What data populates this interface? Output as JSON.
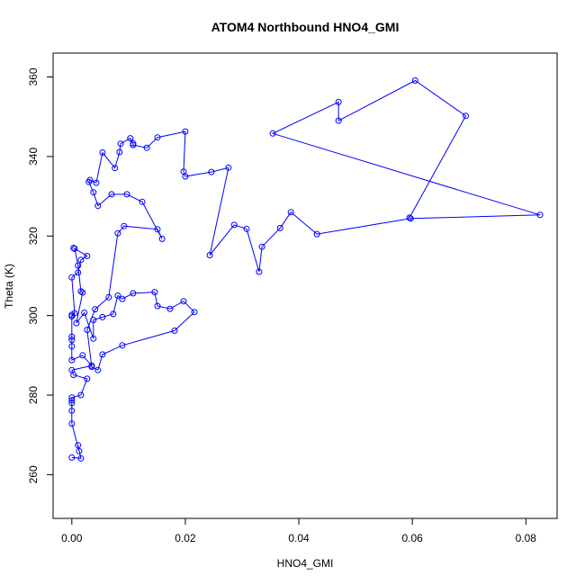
{
  "chart_data": {
    "type": "line",
    "title": "ATOM4 Northbound HNO4_GMI",
    "xlabel": "HNO4_GMI",
    "ylabel": "Theta (K)",
    "xlim": [
      -0.0033,
      0.0855
    ],
    "ylim": [
      249,
      366
    ],
    "x_ticks": [
      "0.00",
      "0.02",
      "0.04",
      "0.06",
      "0.08"
    ],
    "y_ticks": [
      "260",
      "280",
      "300",
      "320",
      "340",
      "360"
    ],
    "grid": false,
    "series": [
      {
        "color": "#0000ff",
        "marker": "open-circle",
        "points": [
          [
            0.0,
            264.3
          ],
          [
            0.0016,
            264.1
          ],
          [
            0.0011,
            267.4
          ],
          [
            0.0013,
            265.9
          ],
          [
            0.0,
            272.8
          ],
          [
            0.0,
            276.1
          ],
          [
            0.0,
            278.0
          ],
          [
            0.0,
            278.7
          ],
          [
            0.0,
            279.4
          ],
          [
            0.0016,
            280.0
          ],
          [
            0.0027,
            284.1
          ],
          [
            0.0003,
            285.1
          ],
          [
            0.0,
            286.3
          ],
          [
            0.0035,
            287.4
          ],
          [
            0.0019,
            290.0
          ],
          [
            0.0,
            288.8
          ],
          [
            0.0,
            292.3
          ],
          [
            0.0,
            293.9
          ],
          [
            0.0,
            294.7
          ],
          [
            0.0,
            300.2
          ],
          [
            0.0,
            299.8
          ],
          [
            0.0005,
            300.6
          ],
          [
            0.0,
            309.6
          ],
          [
            0.0011,
            310.8
          ],
          [
            0.0016,
            314.0
          ],
          [
            0.0027,
            315.0
          ],
          [
            0.0003,
            317.0
          ],
          [
            0.0005,
            316.8
          ],
          [
            0.0011,
            312.6
          ],
          [
            0.0016,
            306.1
          ],
          [
            0.0019,
            305.8
          ],
          [
            0.0008,
            298.1
          ],
          [
            0.0022,
            300.7
          ],
          [
            0.0038,
            294.2
          ],
          [
            0.0038,
            298.9
          ],
          [
            0.0054,
            299.6
          ],
          [
            0.0073,
            300.4
          ],
          [
            0.0081,
            305.0
          ],
          [
            0.0089,
            304.2
          ],
          [
            0.0108,
            305.6
          ],
          [
            0.0146,
            305.9
          ],
          [
            0.0151,
            302.4
          ],
          [
            0.0173,
            301.7
          ],
          [
            0.0197,
            303.6
          ],
          [
            0.0216,
            300.9
          ],
          [
            0.0181,
            296.2
          ],
          [
            0.0089,
            292.5
          ],
          [
            0.0054,
            290.2
          ],
          [
            0.0046,
            286.3
          ],
          [
            0.0035,
            287.1
          ],
          [
            0.0027,
            296.4
          ],
          [
            0.0041,
            301.6
          ],
          [
            0.0065,
            304.6
          ],
          [
            0.0081,
            320.7
          ],
          [
            0.0092,
            322.5
          ],
          [
            0.0151,
            321.7
          ],
          [
            0.0159,
            319.3
          ],
          [
            0.0124,
            328.6
          ],
          [
            0.0097,
            330.5
          ],
          [
            0.007,
            330.5
          ],
          [
            0.0046,
            327.6
          ],
          [
            0.0038,
            331.0
          ],
          [
            0.003,
            333.6
          ],
          [
            0.0032,
            334.1
          ],
          [
            0.0043,
            333.4
          ],
          [
            0.0054,
            341.0
          ],
          [
            0.0076,
            337.1
          ],
          [
            0.0084,
            341.1
          ],
          [
            0.0086,
            343.2
          ],
          [
            0.0103,
            344.6
          ],
          [
            0.0108,
            343.3
          ],
          [
            0.0108,
            342.9
          ],
          [
            0.0132,
            342.2
          ],
          [
            0.0151,
            344.8
          ],
          [
            0.02,
            346.3
          ],
          [
            0.0197,
            336.2
          ],
          [
            0.02,
            335.0
          ],
          [
            0.0246,
            336.1
          ],
          [
            0.0276,
            337.2
          ],
          [
            0.0243,
            315.2
          ],
          [
            0.0286,
            322.8
          ],
          [
            0.0308,
            321.8
          ],
          [
            0.033,
            311.0
          ],
          [
            0.0335,
            317.3
          ],
          [
            0.0367,
            322.0
          ],
          [
            0.0386,
            326.0
          ],
          [
            0.0432,
            320.5
          ],
          [
            0.0597,
            324.4
          ],
          [
            0.0825,
            325.3
          ],
          [
            0.0354,
            345.8
          ],
          [
            0.047,
            353.7
          ],
          [
            0.047,
            349.0
          ],
          [
            0.0605,
            359.1
          ],
          [
            0.0694,
            350.2
          ],
          [
            0.0595,
            324.6
          ]
        ]
      }
    ]
  }
}
